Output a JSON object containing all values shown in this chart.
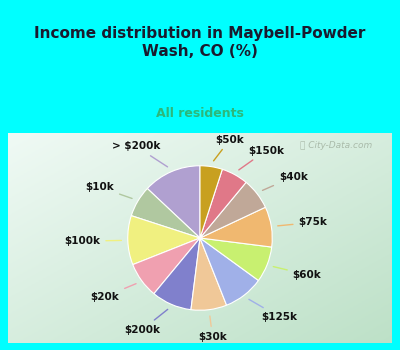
{
  "title": "Income distribution in Maybell-Powder\nWash, CO (%)",
  "subtitle": "All residents",
  "title_color": "#1a1a2e",
  "subtitle_color": "#2db87a",
  "background_top": "#00ffff",
  "watermark": "City-Data.com",
  "labels": [
    "> $200k",
    "$10k",
    "$100k",
    "$20k",
    "$200k",
    "$30k",
    "$125k",
    "$60k",
    "$75k",
    "$40k",
    "$150k",
    "$50k"
  ],
  "values": [
    13,
    7,
    11,
    8,
    9,
    8,
    9,
    8,
    9,
    7,
    6,
    5
  ],
  "colors": [
    "#b0a0d0",
    "#b0c8a0",
    "#f0f080",
    "#f0a0b0",
    "#8080cc",
    "#f0c898",
    "#a0b0e8",
    "#c8f070",
    "#f0b870",
    "#c0a898",
    "#e07888",
    "#c8a020"
  ],
  "label_color": "#111111",
  "label_fontsize": 7.5
}
